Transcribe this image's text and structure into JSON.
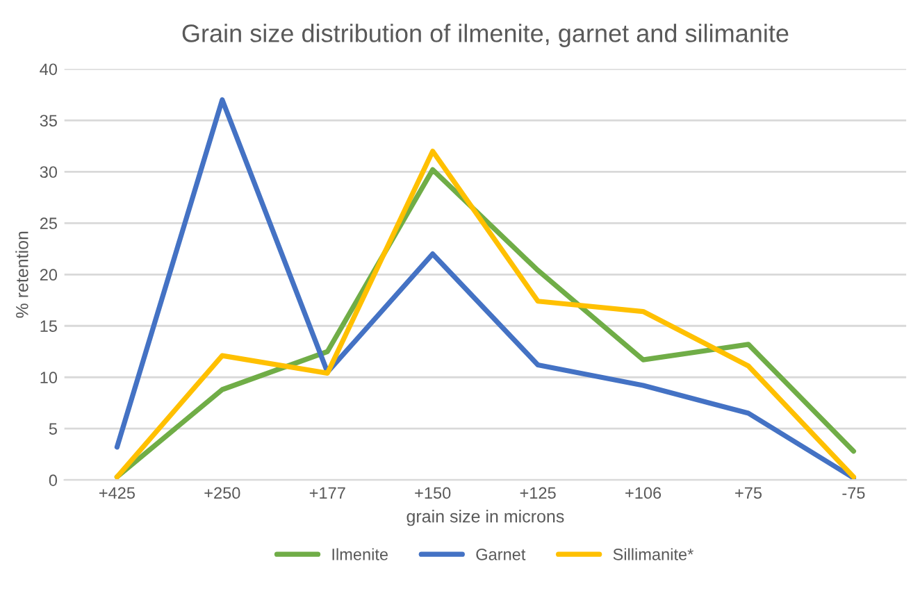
{
  "chart_data": {
    "type": "line",
    "title": "Grain size distribution of ilmenite, garnet and silimanite",
    "xlabel": "grain size in microns",
    "ylabel": "% retention",
    "categories": [
      "+425",
      "+250",
      "+177",
      "+150",
      "+125",
      "+106",
      "+75",
      "-75"
    ],
    "series": [
      {
        "name": "Ilmenite",
        "color": "#70ad47",
        "values": [
          0.3,
          8.8,
          12.5,
          30.2,
          20.4,
          11.7,
          13.2,
          2.8
        ]
      },
      {
        "name": "Garnet",
        "color": "#4472c4",
        "values": [
          3.2,
          37,
          10.5,
          22,
          11.2,
          9.2,
          6.5,
          0.2
        ]
      },
      {
        "name": "Sillimanite*",
        "color": "#ffc000",
        "values": [
          0.3,
          12.1,
          10.4,
          32,
          17.4,
          16.4,
          11.1,
          0.3
        ]
      }
    ],
    "ylim": [
      0,
      40
    ],
    "yticks": [
      0,
      5,
      10,
      15,
      20,
      25,
      30,
      35,
      40
    ],
    "grid": "y",
    "legend": "bottom",
    "marker": "none",
    "line_style": "solid"
  }
}
